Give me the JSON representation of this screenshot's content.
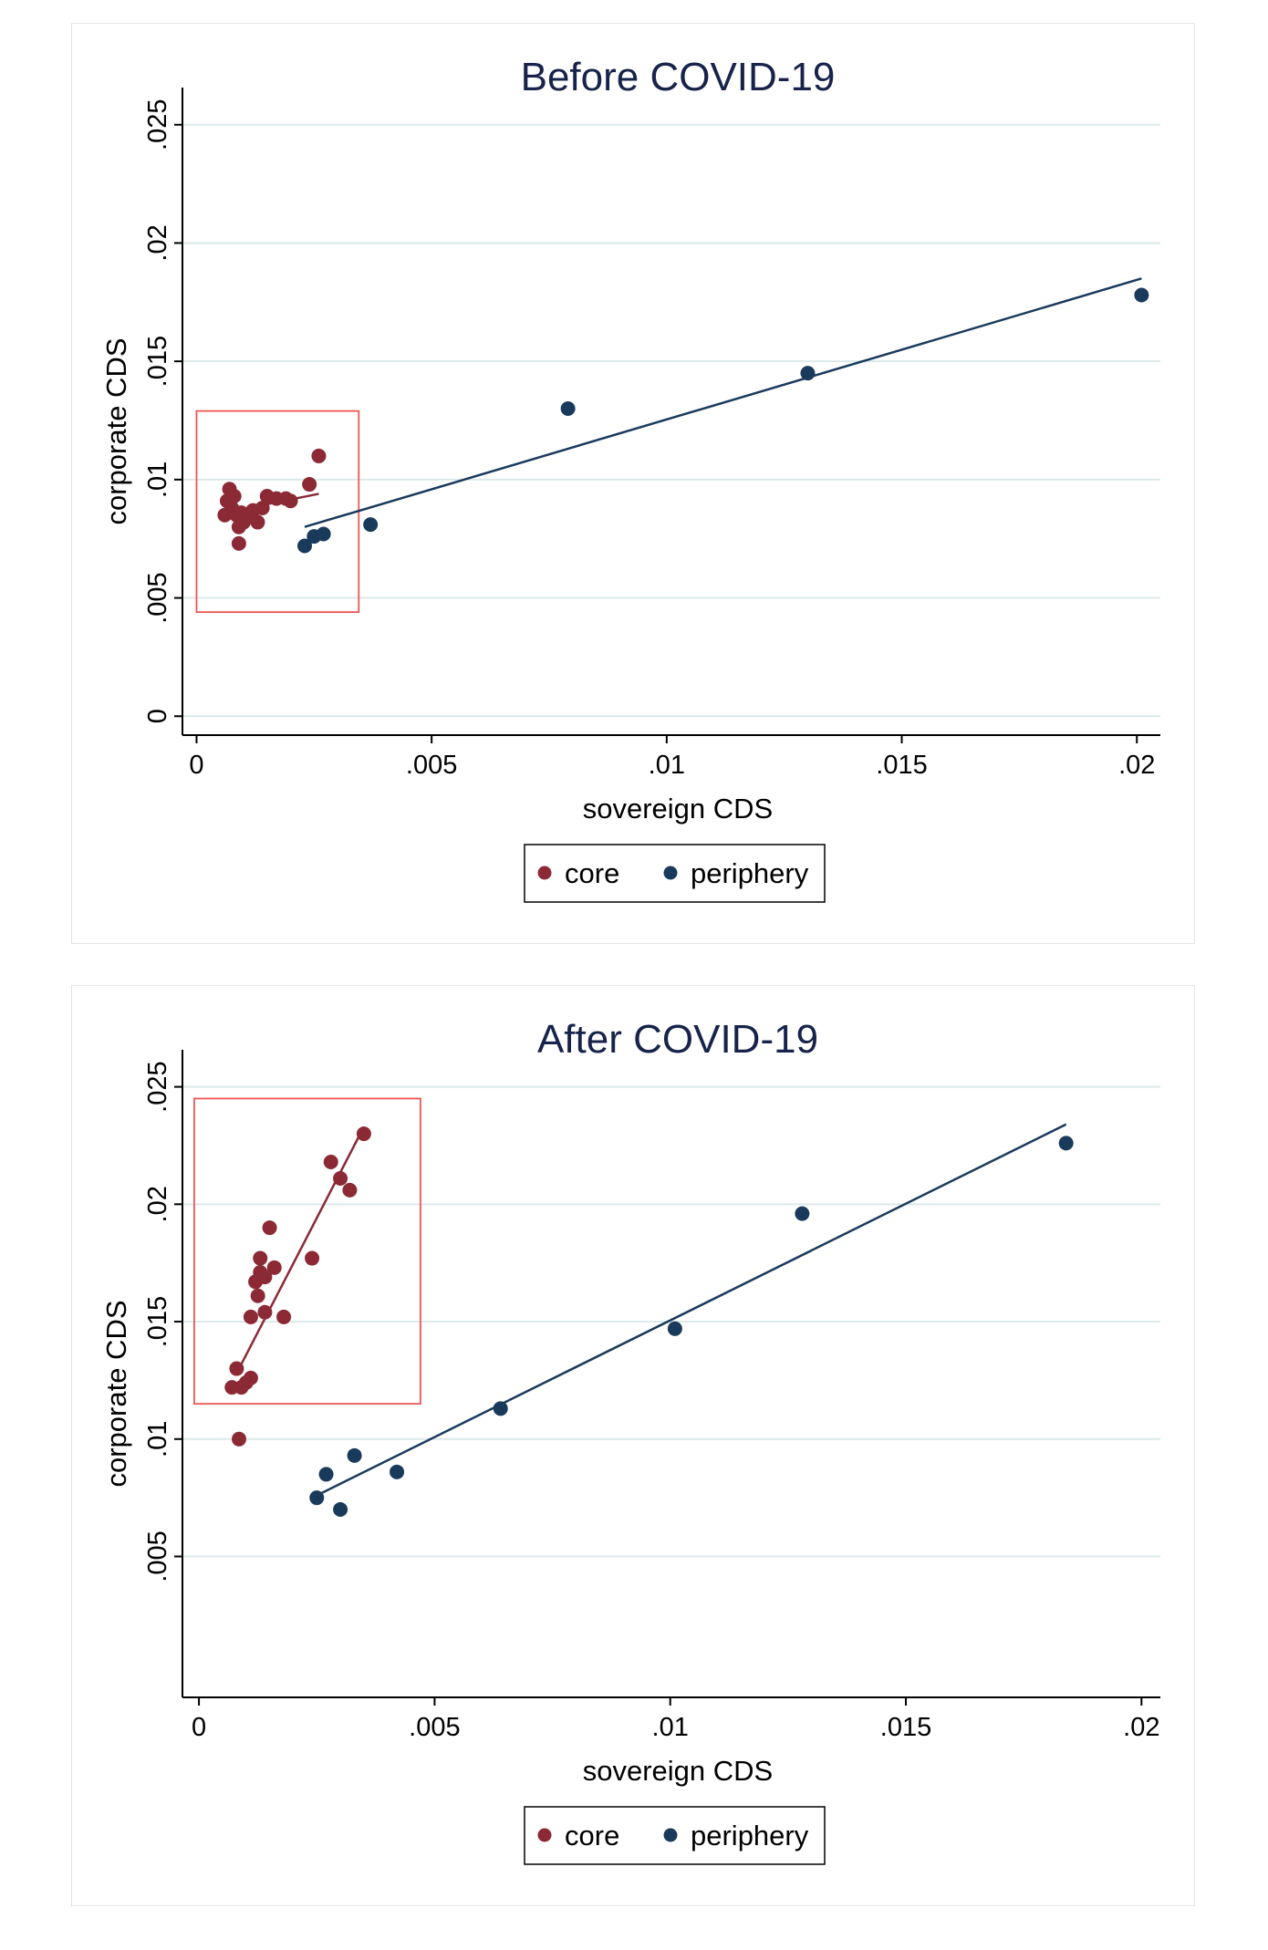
{
  "colors": {
    "core": "#8b2a35",
    "periphery": "#1a3a5c",
    "highlight_box": "#ee5555",
    "grid": "#dce9ea",
    "axis": "#000000",
    "title": "#17234a"
  },
  "chart_data": [
    {
      "type": "scatter",
      "title": "Before COVID-19",
      "xlabel": "sovereign CDS",
      "ylabel": "corporate CDS",
      "xlim": [
        -0.0003,
        0.0205
      ],
      "ylim": [
        -0.0008,
        0.0258
      ],
      "xticks": [
        0,
        0.005,
        0.01,
        0.015,
        0.02
      ],
      "xtick_labels": [
        "0",
        ".005",
        ".01",
        ".015",
        ".02"
      ],
      "yticks": [
        0,
        0.005,
        0.01,
        0.015,
        0.02,
        0.025
      ],
      "ytick_labels": [
        "0",
        ".005",
        ".01",
        ".015",
        ".02",
        ".025"
      ],
      "grid": true,
      "legend": {
        "position": "bottom-center",
        "entries": [
          "core",
          "periphery"
        ]
      },
      "highlight_box": {
        "x": [
          0.0,
          0.00345
        ],
        "y": [
          0.0044,
          0.0129
        ]
      },
      "series": [
        {
          "name": "core",
          "points": [
            [
              0.0006,
              0.0085
            ],
            [
              0.00065,
              0.0091
            ],
            [
              0.0007,
              0.0096
            ],
            [
              0.00075,
              0.0088
            ],
            [
              0.0008,
              0.0093
            ],
            [
              0.00085,
              0.0085
            ],
            [
              0.0009,
              0.008
            ],
            [
              0.0009,
              0.0073
            ],
            [
              0.00095,
              0.0086
            ],
            [
              0.001,
              0.0082
            ],
            [
              0.0011,
              0.0085
            ],
            [
              0.0012,
              0.0087
            ],
            [
              0.0013,
              0.0082
            ],
            [
              0.0014,
              0.0088
            ],
            [
              0.0015,
              0.0093
            ],
            [
              0.0017,
              0.0092
            ],
            [
              0.0019,
              0.0092
            ],
            [
              0.002,
              0.0091
            ],
            [
              0.0024,
              0.0098
            ],
            [
              0.0026,
              0.011
            ]
          ],
          "fit": [
            [
              0.0006,
              0.0086
            ],
            [
              0.0026,
              0.0094
            ]
          ]
        },
        {
          "name": "periphery",
          "points": [
            [
              0.0023,
              0.0072
            ],
            [
              0.0025,
              0.0076
            ],
            [
              0.0027,
              0.0077
            ],
            [
              0.0037,
              0.0081
            ],
            [
              0.0079,
              0.013
            ],
            [
              0.013,
              0.0145
            ],
            [
              0.0201,
              0.0178
            ]
          ],
          "fit": [
            [
              0.0023,
              0.008
            ],
            [
              0.0201,
              0.0185
            ]
          ]
        }
      ]
    },
    {
      "type": "scatter",
      "title": "After COVID-19",
      "xlabel": "sovereign CDS",
      "ylabel": "corporate CDS",
      "xlim": [
        -0.00035,
        0.0204
      ],
      "ylim": [
        -0.001,
        0.0258
      ],
      "xticks": [
        0,
        0.005,
        0.01,
        0.015,
        0.02
      ],
      "xtick_labels": [
        "0",
        ".005",
        ".01",
        ".015",
        ".02"
      ],
      "yticks": [
        0.005,
        0.01,
        0.015,
        0.02,
        0.025
      ],
      "ytick_labels": [
        ".005",
        ".01",
        ".015",
        ".02",
        ".025"
      ],
      "grid": true,
      "legend": {
        "position": "bottom-center",
        "entries": [
          "core",
          "periphery"
        ]
      },
      "highlight_box": {
        "x": [
          -0.0001,
          0.0047
        ],
        "y": [
          0.0115,
          0.0245
        ]
      },
      "series": [
        {
          "name": "core",
          "points": [
            [
              0.0007,
              0.0122
            ],
            [
              0.0008,
              0.013
            ],
            [
              0.00085,
              0.01
            ],
            [
              0.0009,
              0.0122
            ],
            [
              0.001,
              0.0124
            ],
            [
              0.0011,
              0.0126
            ],
            [
              0.0011,
              0.0152
            ],
            [
              0.0012,
              0.0167
            ],
            [
              0.00125,
              0.0161
            ],
            [
              0.0013,
              0.0171
            ],
            [
              0.0013,
              0.0177
            ],
            [
              0.0014,
              0.0154
            ],
            [
              0.0014,
              0.0169
            ],
            [
              0.0015,
              0.019
            ],
            [
              0.0016,
              0.0173
            ],
            [
              0.0018,
              0.0152
            ],
            [
              0.0024,
              0.0177
            ],
            [
              0.0028,
              0.0218
            ],
            [
              0.003,
              0.0211
            ],
            [
              0.0032,
              0.0206
            ],
            [
              0.0035,
              0.023
            ]
          ],
          "fit": [
            [
              0.0008,
              0.0128
            ],
            [
              0.0035,
              0.0233
            ]
          ]
        },
        {
          "name": "periphery",
          "points": [
            [
              0.0025,
              0.0075
            ],
            [
              0.0027,
              0.0085
            ],
            [
              0.003,
              0.007
            ],
            [
              0.0033,
              0.0093
            ],
            [
              0.0042,
              0.0086
            ],
            [
              0.0064,
              0.0113
            ],
            [
              0.0101,
              0.0147
            ],
            [
              0.0128,
              0.0196
            ],
            [
              0.0184,
              0.0226
            ]
          ],
          "fit": [
            [
              0.0025,
              0.0076
            ],
            [
              0.0184,
              0.0234
            ]
          ]
        }
      ]
    }
  ]
}
